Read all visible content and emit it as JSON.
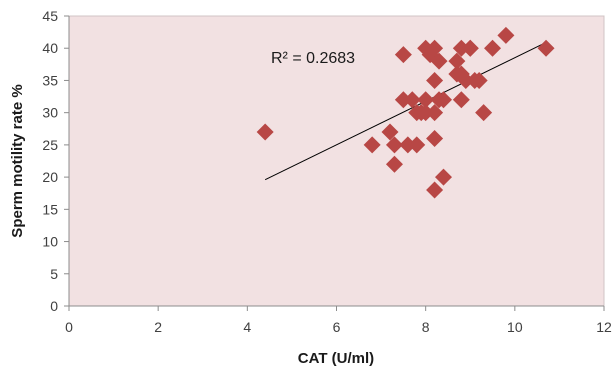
{
  "chart_data": {
    "type": "scatter",
    "xlabel": "CAT (U/ml)",
    "ylabel": "Sperm motility  rate %",
    "xlim": [
      0,
      12
    ],
    "ylim": [
      0,
      45
    ],
    "xticks": [
      0,
      2,
      4,
      6,
      8,
      10,
      12
    ],
    "yticks": [
      0,
      5,
      10,
      15,
      20,
      25,
      30,
      35,
      40,
      45
    ],
    "grid": false,
    "legend": "none",
    "plot_background": "#f2e1e2",
    "marker": "diamond",
    "marker_color": "#b84745",
    "trendline_color": "#000000",
    "annotation": "R² = 0.2683",
    "trendline": {
      "x": [
        4.4,
        10.7
      ],
      "y": [
        19.6,
        40.9
      ]
    },
    "series": [
      {
        "x": [
          4.4,
          6.8,
          7.2,
          7.3,
          7.3,
          7.5,
          7.5,
          7.6,
          7.7,
          7.8,
          7.8,
          7.9,
          8.0,
          8.0,
          8.0,
          8.1,
          8.2,
          8.2,
          8.2,
          8.2,
          8.2,
          8.3,
          8.3,
          8.4,
          8.4,
          8.7,
          8.7,
          8.8,
          8.8,
          8.8,
          8.9,
          9.0,
          9.0,
          9.1,
          9.2,
          9.3,
          9.5,
          9.8,
          10.7
        ],
        "y": [
          27,
          25,
          27,
          25,
          22,
          32,
          39,
          25,
          32,
          25,
          30,
          30,
          40,
          32,
          30,
          39,
          40,
          35,
          30,
          26,
          18,
          38,
          32,
          32,
          20,
          36,
          38,
          40,
          36,
          32,
          35,
          40,
          40,
          35,
          35,
          30,
          40,
          42,
          40
        ]
      }
    ]
  }
}
